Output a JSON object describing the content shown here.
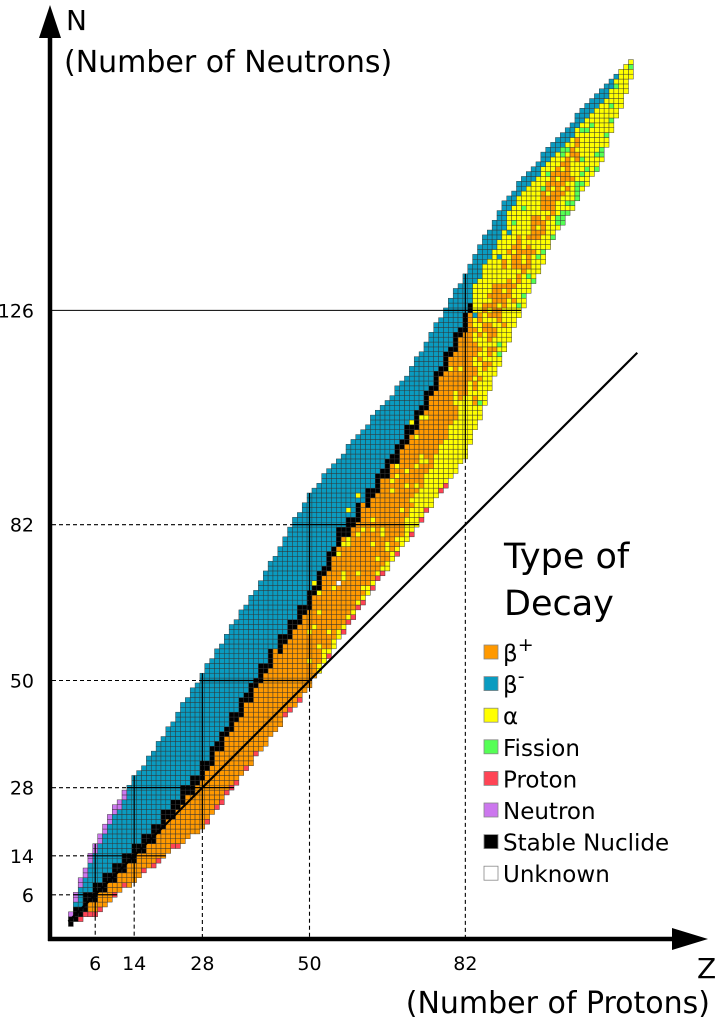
{
  "chart_data": {
    "type": "heatmap",
    "title": "Type of Decay",
    "title_lines": [
      "Type of",
      "Decay"
    ],
    "xlabel_symbol": "Z",
    "xlabel": "(Number of Protons)",
    "ylabel_symbol": "N",
    "ylabel": "(Number of Neutrons)",
    "xlim": [
      0,
      130
    ],
    "ylim": [
      0,
      185
    ],
    "xticks": [
      "6",
      "14",
      "28",
      "50",
      "82"
    ],
    "xtick_values": [
      6,
      14,
      28,
      50,
      82
    ],
    "yticks": [
      "6",
      "14",
      "28",
      "50",
      "82",
      "126"
    ],
    "ytick_values": [
      6,
      14,
      28,
      50,
      82,
      126
    ],
    "magic_numbers_Z": [
      6,
      14,
      28,
      50,
      82
    ],
    "magic_numbers_N": [
      6,
      14,
      28,
      50,
      82,
      126
    ],
    "reference_line": "N = Z",
    "legend_placement": "right",
    "legend": [
      {
        "key": "beta_plus",
        "label": "β",
        "sup": "+",
        "color": "#FF9900"
      },
      {
        "key": "beta_minus",
        "label": "β",
        "sup": "-",
        "color": "#0A9BC0"
      },
      {
        "key": "alpha",
        "label": "α",
        "sup": "",
        "color": "#FFFF00"
      },
      {
        "key": "fission",
        "label": "Fission",
        "sup": "",
        "color": "#55FF55"
      },
      {
        "key": "proton",
        "label": "Proton",
        "sup": "",
        "color": "#FF4455"
      },
      {
        "key": "neutron",
        "label": "Neutron",
        "sup": "",
        "color": "#CC77EE"
      },
      {
        "key": "stable",
        "label": "Stable Nuclide",
        "sup": "",
        "color": "#000000"
      },
      {
        "key": "unknown",
        "label": "Unknown",
        "sup": "",
        "color": "#FFFFFF"
      }
    ],
    "nuclide_bounds": {
      "Z": [
        1,
        2,
        6,
        10,
        20,
        28,
        40,
        50,
        60,
        70,
        82,
        90,
        100,
        110,
        116
      ],
      "Nmin": [
        0,
        1,
        2,
        6,
        14,
        20,
        36,
        49,
        65,
        79,
        96,
        118,
        141,
        157,
        174
      ],
      "Nmax": [
        2,
        6,
        16,
        24,
        38,
        51,
        70,
        88,
        100,
        112,
        133,
        148,
        160,
        171,
        177
      ]
    },
    "stable_band": {
      "Z": [
        1,
        2,
        6,
        10,
        20,
        28,
        40,
        50,
        56,
        60,
        70,
        80,
        83
      ],
      "Ncenter": [
        0.5,
        1.5,
        6.5,
        10.5,
        21,
        31,
        51,
        66,
        79,
        84,
        100,
        119,
        126
      ]
    }
  }
}
